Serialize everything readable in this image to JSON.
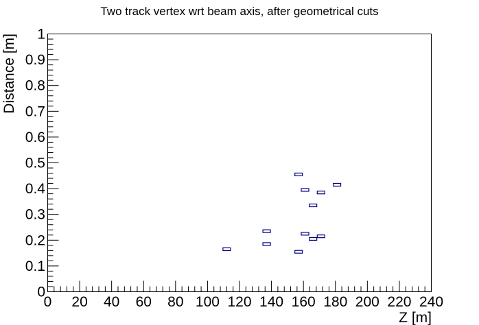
{
  "chart_data": {
    "type": "scatter",
    "title": "Two track vertex wrt beam axis, after geometrical cuts",
    "xlabel": "Z [m]",
    "ylabel": "Distance [m]",
    "xlim": [
      0,
      240
    ],
    "ylim": [
      0,
      1
    ],
    "grid": false,
    "legend": "none",
    "marker": "box",
    "marker_color": "#00007f",
    "x_ticks": [
      "0",
      "20",
      "40",
      "60",
      "80",
      "100",
      "120",
      "140",
      "160",
      "180",
      "200",
      "220",
      "240"
    ],
    "y_ticks": [
      "0",
      "0.1",
      "0.2",
      "0.3",
      "0.4",
      "0.5",
      "0.6",
      "0.7",
      "0.8",
      "0.9",
      "1"
    ],
    "points": [
      {
        "x": 112,
        "y": 0.165
      },
      {
        "x": 137,
        "y": 0.235
      },
      {
        "x": 137,
        "y": 0.185
      },
      {
        "x": 157,
        "y": 0.455
      },
      {
        "x": 157,
        "y": 0.155
      },
      {
        "x": 161,
        "y": 0.395
      },
      {
        "x": 161,
        "y": 0.225
      },
      {
        "x": 166,
        "y": 0.335
      },
      {
        "x": 166,
        "y": 0.205
      },
      {
        "x": 171,
        "y": 0.385
      },
      {
        "x": 171,
        "y": 0.215
      },
      {
        "x": 181,
        "y": 0.415
      }
    ]
  }
}
